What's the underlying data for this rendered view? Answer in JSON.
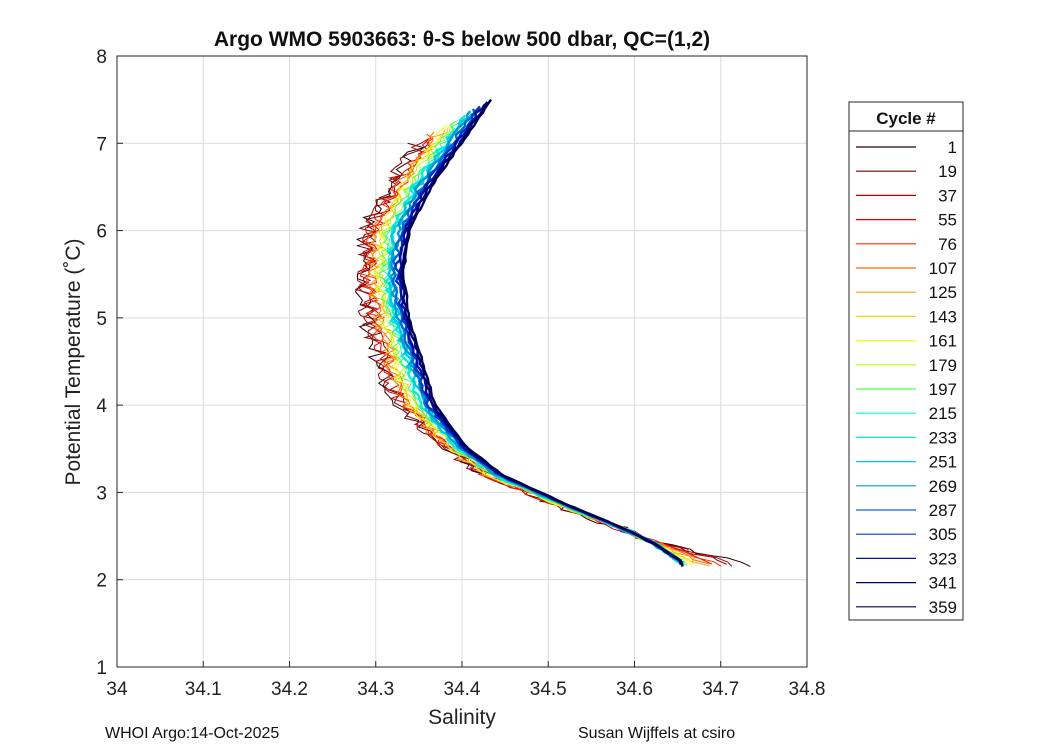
{
  "chart_data": {
    "type": "line",
    "title": "Argo WMO 5903663: θ-S below 500 dbar,  QC=(1,2)",
    "xlabel": "Salinity",
    "ylabel": "Potential Temperature (˚C)",
    "xlim": [
      34.0,
      34.8
    ],
    "ylim": [
      1,
      8
    ],
    "xticks": [
      "34",
      "34.1",
      "34.2",
      "34.3",
      "34.4",
      "34.5",
      "34.6",
      "34.7",
      "34.8"
    ],
    "yticks": [
      "1",
      "2",
      "3",
      "4",
      "5",
      "6",
      "7",
      "8"
    ],
    "grid": true,
    "legend_title": "Cycle #",
    "legend_position": "right",
    "legend": [
      {
        "label": "1",
        "color": "#2a0000"
      },
      {
        "label": "19",
        "color": "#7a0000"
      },
      {
        "label": "37",
        "color": "#b30000"
      },
      {
        "label": "55",
        "color": "#e00000"
      },
      {
        "label": "76",
        "color": "#ff2a00"
      },
      {
        "label": "107",
        "color": "#ff6a00"
      },
      {
        "label": "125",
        "color": "#ffa000"
      },
      {
        "label": "143",
        "color": "#ffd000"
      },
      {
        "label": "161",
        "color": "#f0ff00"
      },
      {
        "label": "179",
        "color": "#b0ff10"
      },
      {
        "label": "197",
        "color": "#50ff50"
      },
      {
        "label": "215",
        "color": "#10ffa0"
      },
      {
        "label": "233",
        "color": "#00f0d8"
      },
      {
        "label": "251",
        "color": "#00c8e8"
      },
      {
        "label": "269",
        "color": "#009cd8"
      },
      {
        "label": "287",
        "color": "#006ad8"
      },
      {
        "label": "305",
        "color": "#0038c8"
      },
      {
        "label": "323",
        "color": "#0010a8"
      },
      {
        "label": "341",
        "color": "#000078"
      },
      {
        "label": "359",
        "color": "#000050"
      }
    ],
    "base_curve": [
      {
        "t": 7.5,
        "s": 34.43
      },
      {
        "t": 7.0,
        "s": 34.395
      },
      {
        "t": 6.5,
        "s": 34.36
      },
      {
        "t": 6.0,
        "s": 34.335
      },
      {
        "t": 5.5,
        "s": 34.328
      },
      {
        "t": 5.0,
        "s": 34.335
      },
      {
        "t": 4.5,
        "s": 34.35
      },
      {
        "t": 4.0,
        "s": 34.365
      },
      {
        "t": 3.5,
        "s": 34.405
      },
      {
        "t": 3.2,
        "s": 34.445
      },
      {
        "t": 3.0,
        "s": 34.49
      },
      {
        "t": 2.8,
        "s": 34.535
      },
      {
        "t": 2.6,
        "s": 34.585
      },
      {
        "t": 2.4,
        "s": 34.625
      },
      {
        "t": 2.2,
        "s": 34.655
      }
    ]
  },
  "footer": {
    "left": "WHOI Argo:14-Oct-2025",
    "right": "Susan Wijffels at csiro"
  }
}
